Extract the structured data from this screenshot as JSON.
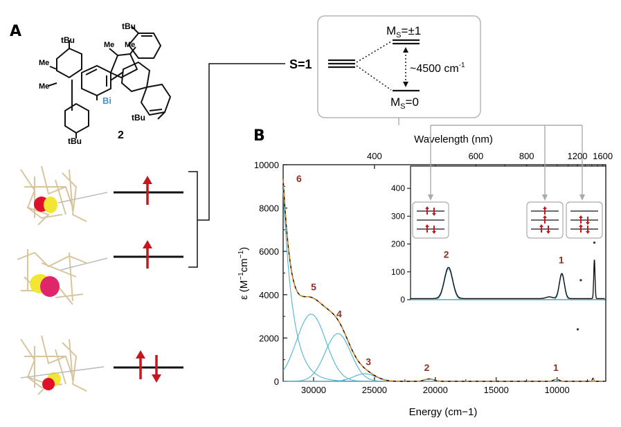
{
  "panels": {
    "a_label": "A",
    "b_label": "B"
  },
  "molecule": {
    "compound_number": "2",
    "bi_label": "Bi",
    "tbu_labels": [
      "tBu",
      "tBu",
      "tBu",
      "tBu"
    ],
    "me_labels": [
      "Me",
      "Me",
      "Me",
      "Me"
    ],
    "bi_color": "#4a90c8"
  },
  "orbitals": {
    "levels": [
      {
        "occupancy": "single-up"
      },
      {
        "occupancy": "single-up"
      },
      {
        "occupancy": "paired"
      }
    ],
    "arrow_color": "#c4171e",
    "lobe_colors": [
      "#e0102a",
      "#f2e632"
    ]
  },
  "spin_state": {
    "label": "S=1",
    "ms_upper_main": "M",
    "ms_upper_sub": "S",
    "ms_upper_value": "=±1",
    "ms_lower_main": "M",
    "ms_lower_sub": "S",
    "ms_lower_value": "=0",
    "gap_text": "~4500 cm",
    "gap_exp": "-1"
  },
  "chart_data": {
    "type": "line",
    "xlabel": "Energy (cm−1)",
    "ylabel_prefix": "ε (M",
    "ylabel_exp1": "−1",
    "ylabel_mid": "cm",
    "ylabel_exp2": "−1",
    "ylabel_suffix": ")",
    "top_axis_label": "Wavelength (nm)",
    "xlim": [
      32500,
      6000
    ],
    "ylim": [
      0,
      10000
    ],
    "x_ticks": [
      30000,
      25000,
      20000,
      15000,
      10000
    ],
    "x_tick_labels": [
      "30000",
      "25000",
      "20000",
      "15000",
      "10000"
    ],
    "y_ticks": [
      0,
      2000,
      4000,
      6000,
      8000,
      10000
    ],
    "y_tick_labels": [
      "0",
      "2000",
      "4000",
      "6000",
      "8000",
      "10000"
    ],
    "top_ticks_nm": [
      400,
      600,
      800,
      1200,
      1600
    ],
    "top_tick_labels": [
      "400",
      "600",
      "800",
      "1200",
      "1600"
    ],
    "band_labels": [
      {
        "label": "6",
        "x": 31200,
        "y": 9200
      },
      {
        "label": "5",
        "x": 30000,
        "y": 4200
      },
      {
        "label": "4",
        "x": 27900,
        "y": 2950
      },
      {
        "label": "3",
        "x": 25500,
        "y": 750
      },
      {
        "label": "2",
        "x": 20700,
        "y": 480
      },
      {
        "label": "1",
        "x": 10100,
        "y": 480
      }
    ],
    "gaussians": [
      {
        "center": 30200,
        "amp": 3100,
        "sigma": 1200
      },
      {
        "center": 28000,
        "amp": 2200,
        "sigma": 1050
      },
      {
        "center": 25800,
        "amp": 350,
        "sigma": 900
      },
      {
        "center": 20500,
        "amp": 110,
        "sigma": 380
      },
      {
        "center": 10050,
        "amp": 90,
        "sigma": 230
      }
    ],
    "uv_tail": {
      "amp": 10000,
      "center": 32600,
      "decay": 820
    },
    "nir_peak": {
      "center": 7050,
      "amp": 140,
      "sigma": 60
    },
    "dots": [
      {
        "x": 8300,
        "y": 60
      },
      {
        "x": 7050,
        "y": 200
      }
    ],
    "colors": {
      "experimental": "#111111",
      "fit": "#e08a1e",
      "components": "#4fb3cf",
      "band_label": "#8b3222"
    },
    "inset": {
      "xlim": [
        32500,
        6000
      ],
      "ylim": [
        0,
        480
      ],
      "y_ticks": [
        0,
        100,
        200,
        300,
        400
      ],
      "y_tick_labels": [
        "0",
        "100",
        "200",
        "300",
        "400"
      ],
      "band_labels": [
        {
          "label": "2",
          "x": 20700,
          "y": 150
        },
        {
          "label": "1",
          "x": 10100,
          "y": 130
        }
      ],
      "box_x": [
        20000,
        9900,
        7750
      ],
      "box_fills": [
        {
          "levels": 3,
          "pattern": "paired-top-bottom"
        },
        {
          "levels": 3,
          "pattern": "single-top-middle-paired-bottom"
        },
        {
          "levels": 3,
          "pattern": "mixed"
        }
      ]
    }
  }
}
